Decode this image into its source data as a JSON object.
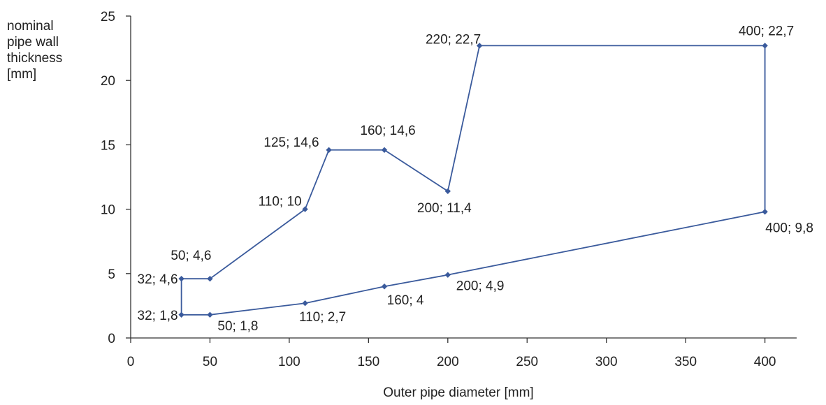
{
  "chart_data": {
    "type": "line",
    "ylabel_lines": [
      "nominal",
      "pipe wall",
      "thickness",
      "[mm]"
    ],
    "xlabel": "Outer pipe diameter [mm]",
    "xlim": [
      0,
      420
    ],
    "ylim": [
      0,
      25
    ],
    "x_ticks": [
      0,
      50,
      100,
      150,
      200,
      250,
      300,
      350,
      400
    ],
    "y_ticks": [
      0,
      5,
      10,
      15,
      20,
      25
    ],
    "grid": false,
    "color": "#3a5a9c",
    "series": [
      {
        "points": [
          {
            "x": 32,
            "y": 1.8,
            "label": "32; 1,8"
          },
          {
            "x": 32,
            "y": 4.6,
            "label": "32; 4,6"
          },
          {
            "x": 50,
            "y": 4.6,
            "label": "50; 4,6"
          },
          {
            "x": 110,
            "y": 10,
            "label": "110; 10"
          },
          {
            "x": 125,
            "y": 14.6,
            "label": "125; 14,6"
          },
          {
            "x": 160,
            "y": 14.6,
            "label": "160; 14,6"
          },
          {
            "x": 200,
            "y": 11.4,
            "label": "200; 11,4"
          },
          {
            "x": 220,
            "y": 22.7,
            "label": "220; 22,7"
          },
          {
            "x": 400,
            "y": 22.7,
            "label": "400; 22,7"
          },
          {
            "x": 400,
            "y": 9.8,
            "label": "400; 9,8"
          },
          {
            "x": 200,
            "y": 4.9,
            "label": "200; 4,9"
          },
          {
            "x": 160,
            "y": 4,
            "label": "160; 4"
          },
          {
            "x": 110,
            "y": 2.7,
            "label": "110; 2,7"
          },
          {
            "x": 50,
            "y": 1.8,
            "label": "50; 1,8"
          },
          {
            "x": 32,
            "y": 1.8,
            "label": "32; 1,8"
          }
        ]
      }
    ]
  }
}
